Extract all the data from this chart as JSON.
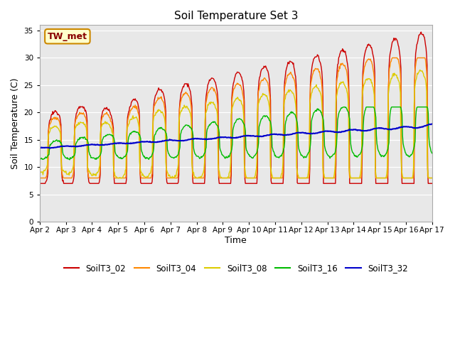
{
  "title": "Soil Temperature Set 3",
  "xlabel": "Time",
  "ylabel": "Soil Temperature (C)",
  "ylim": [
    0,
    36
  ],
  "yticks": [
    0,
    5,
    10,
    15,
    20,
    25,
    30,
    35
  ],
  "series_colors": {
    "SoilT3_02": "#cc0000",
    "SoilT3_04": "#ff8800",
    "SoilT3_08": "#ddcc00",
    "SoilT3_16": "#00bb00",
    "SoilT3_32": "#0000cc"
  },
  "annotation_text": "TW_met",
  "background_color": "#ffffff",
  "plot_bg_color": "#e8e8e8",
  "x_labels": [
    "Apr 2",
    "Apr 3",
    "Apr 4",
    "Apr 5",
    "Apr 6",
    "Apr 7",
    "Apr 8",
    "Apr 9",
    "Apr 10",
    "Apr 11",
    "Apr 12",
    "Apr 13",
    "Apr 14",
    "Apr 15",
    "Apr 16",
    "Apr 17"
  ]
}
